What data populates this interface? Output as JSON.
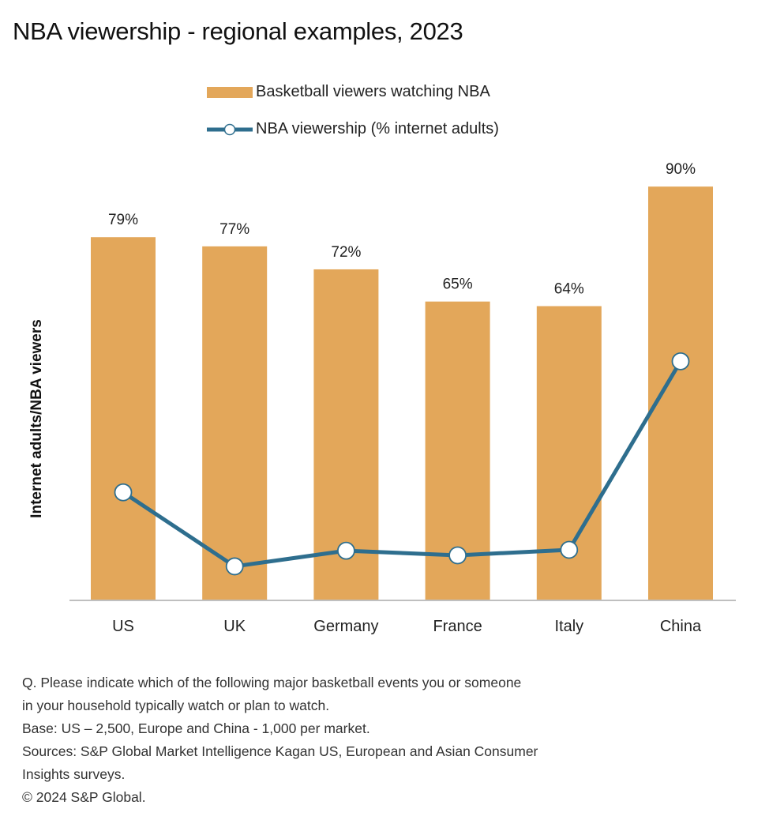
{
  "title": "NBA viewership - regional examples, 2023",
  "colors": {
    "bar": "#E3A75A",
    "line": "#2E6E8E",
    "marker_fill": "#FFFFFF",
    "axis": "#BFBFBF",
    "text": "#222222"
  },
  "chart_data": {
    "type": "bar",
    "title": "NBA viewership - regional examples, 2023",
    "xlabel": "",
    "ylabel": "Internet adults/NBA viewers",
    "ylim": [
      0,
      100
    ],
    "grid": false,
    "legend_position": "top-center",
    "categories": [
      "US",
      "UK",
      "Germany",
      "France",
      "Italy",
      "China"
    ],
    "series": [
      {
        "name": "Basketball viewers watching NBA",
        "type": "bar",
        "values": [
          79,
          77,
          72,
          65,
          64,
          90
        ],
        "labels": [
          "79%",
          "77%",
          "72%",
          "65%",
          "64%",
          "90%"
        ]
      },
      {
        "name": "NBA viewership (% internet adults)",
        "type": "line",
        "values": [
          23.5,
          7.4,
          10.8,
          9.8,
          11,
          52
        ]
      }
    ]
  },
  "notes": [
    "Q. Please indicate which of the following major basketball events you or someone",
    "in your household typically watch or plan to watch.",
    "Base: US – 2,500, Europe and China - 1,000 per market.",
    "Sources: S&P Global Market Intelligence Kagan US, European and Asian Consumer",
    "Insights surveys.",
    "© 2024 S&P Global."
  ]
}
